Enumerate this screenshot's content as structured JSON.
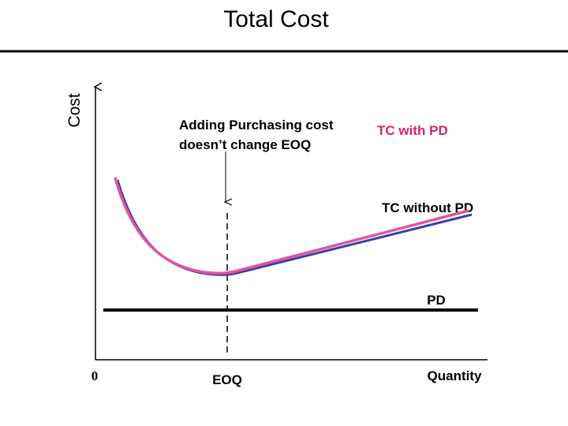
{
  "slide": {
    "title": "Total Cost"
  },
  "axes": {
    "y_label": "Cost",
    "x_label": "Quantity",
    "origin_label": "0"
  },
  "annotation": {
    "line1": "Adding Purchasing cost",
    "line2": "doesn’t change EOQ"
  },
  "curves": {
    "tc_with_pd_label": "TC with PD",
    "tc_without_pd_label": "TC without PD",
    "pd_label": "PD",
    "eoq_label": "EOQ"
  },
  "colors": {
    "tc_with_pd": "#e0559a",
    "tc_without_pd": "#3b3fb0",
    "pd_line": "#000000",
    "annotation_pink": "#d6246e"
  }
}
